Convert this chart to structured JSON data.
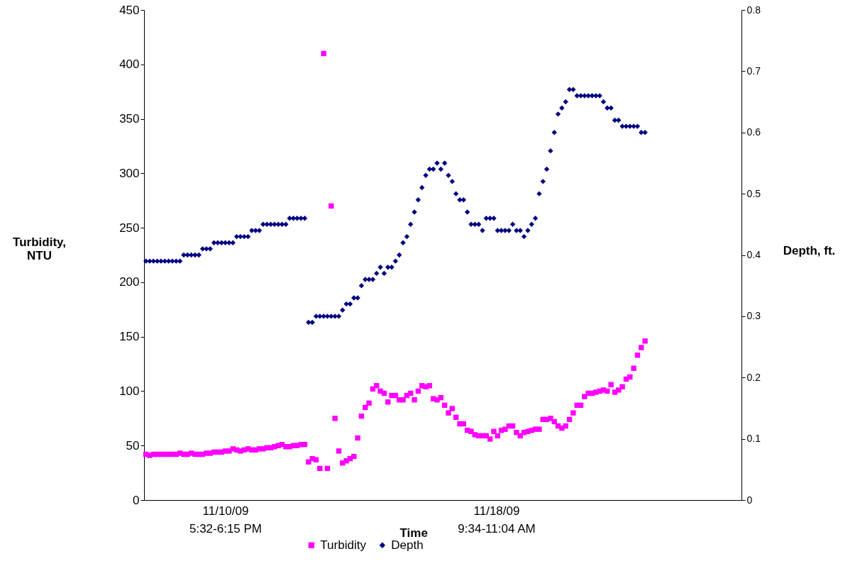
{
  "chart_data": {
    "type": "scatter",
    "ylabel": "Turbidity, NTU",
    "y2label": "Depth, ft.",
    "xlabel": "Time",
    "annotations": [
      "11/10/09 5:32-6:15 PM",
      "11/18/09 9:34-11:04 AM"
    ],
    "categories": [
      null,
      null,
      null,
      null,
      null,
      null,
      null,
      null,
      null,
      null,
      null,
      null,
      null,
      null,
      null,
      null,
      null,
      null,
      null,
      null,
      null,
      null,
      null,
      null,
      null,
      null,
      null,
      null,
      null,
      null,
      null,
      null,
      null,
      null,
      null,
      null,
      null,
      null,
      null,
      null,
      null,
      null,
      null,
      null,
      null,
      null,
      null,
      null,
      null,
      null,
      null,
      null,
      null,
      null,
      null,
      null,
      null,
      null,
      null,
      null,
      null,
      null,
      null,
      null,
      null,
      null,
      null,
      null,
      null,
      null,
      null,
      null,
      null,
      null,
      null,
      null,
      null,
      null,
      null,
      null,
      null,
      null,
      null,
      null,
      null,
      null,
      null,
      null,
      null,
      null,
      null,
      null,
      null,
      null,
      null,
      null,
      null,
      null,
      null,
      null,
      null,
      null,
      null,
      null,
      null,
      null,
      null,
      null,
      null,
      null,
      null,
      null,
      null,
      null,
      null,
      null,
      null,
      null,
      null,
      null,
      null,
      null,
      null,
      null,
      null,
      null,
      null,
      null,
      null,
      null,
      null,
      null,
      null,
      null,
      null,
      null,
      null,
      null,
      null,
      null,
      null,
      null,
      null,
      null,
      null,
      null,
      null,
      null,
      null,
      null,
      null,
      null,
      null,
      null,
      null,
      null,
      null,
      null
    ],
    "series": [
      {
        "name": "Turbidity",
        "color": "#ff00ff",
        "marker": "square",
        "values": [
          42,
          41,
          42,
          42,
          42,
          42,
          42,
          42,
          42,
          43,
          42,
          42,
          43,
          42,
          42,
          42,
          43,
          43,
          44,
          44,
          44,
          45,
          45,
          47,
          46,
          45,
          46,
          47,
          46,
          46,
          47,
          47,
          48,
          48,
          49,
          50,
          51,
          49,
          49,
          50,
          50,
          51,
          51,
          35,
          38,
          37,
          29,
          410,
          29,
          270,
          75,
          45,
          34,
          36,
          38,
          40,
          57,
          77,
          85,
          89,
          102,
          105,
          100,
          98,
          90,
          96,
          96,
          92,
          92,
          96,
          98,
          92,
          100,
          105,
          104,
          105,
          93,
          92,
          94,
          87,
          80,
          84,
          76,
          70,
          70,
          64,
          63,
          60,
          59,
          59,
          59,
          56,
          63,
          59,
          64,
          65,
          68,
          68,
          62,
          59,
          62,
          63,
          64,
          65,
          65,
          74,
          74,
          75,
          72,
          68,
          66,
          68,
          74,
          80,
          87,
          87,
          95,
          98,
          98,
          99,
          100,
          101,
          100,
          106,
          99,
          101,
          104,
          111,
          113,
          121,
          133,
          140,
          146,
          null,
          null,
          null,
          null,
          null,
          null,
          null,
          null,
          null,
          null,
          null,
          null,
          null,
          null,
          null,
          null,
          null,
          null,
          null,
          null,
          null,
          null,
          null,
          null,
          null
        ]
      },
      {
        "name": "Depth",
        "color": "#000080",
        "marker": "diamond",
        "axis": "y2",
        "values": [
          0.39,
          0.39,
          0.39,
          0.39,
          0.39,
          0.39,
          0.39,
          0.39,
          0.39,
          0.39,
          0.4,
          0.4,
          0.4,
          0.4,
          0.4,
          0.41,
          0.41,
          0.41,
          0.42,
          0.42,
          0.42,
          0.42,
          0.42,
          0.42,
          0.43,
          0.43,
          0.43,
          0.43,
          0.44,
          0.44,
          0.44,
          0.45,
          0.45,
          0.45,
          0.45,
          0.45,
          0.45,
          0.45,
          0.46,
          0.46,
          0.46,
          0.46,
          0.46,
          0.29,
          0.29,
          0.3,
          0.3,
          0.3,
          0.3,
          0.3,
          0.3,
          0.3,
          0.31,
          0.32,
          0.32,
          0.33,
          0.33,
          0.35,
          0.36,
          0.36,
          0.36,
          0.37,
          0.38,
          0.37,
          0.38,
          0.38,
          0.39,
          0.4,
          0.42,
          0.43,
          0.45,
          0.47,
          0.49,
          0.51,
          0.53,
          0.54,
          0.54,
          0.55,
          0.54,
          0.55,
          0.53,
          0.52,
          0.5,
          0.49,
          0.49,
          0.47,
          0.45,
          0.45,
          0.45,
          0.44,
          0.46,
          0.46,
          0.46,
          0.44,
          0.44,
          0.44,
          0.44,
          0.45,
          0.44,
          0.44,
          0.43,
          0.44,
          0.45,
          0.46,
          0.5,
          0.52,
          0.54,
          0.57,
          0.6,
          0.63,
          0.64,
          0.65,
          0.67,
          0.67,
          0.66,
          0.66,
          0.66,
          0.66,
          0.66,
          0.66,
          0.66,
          0.65,
          0.64,
          0.64,
          0.62,
          0.62,
          0.61,
          0.61,
          0.61,
          0.61,
          0.61,
          0.6,
          0.6,
          null,
          null,
          null,
          null,
          null,
          null,
          null,
          null,
          null,
          null,
          null,
          null,
          null,
          null,
          null,
          null,
          null,
          null,
          null,
          null,
          null,
          null,
          null,
          null,
          null
        ]
      }
    ],
    "ylim": [
      0,
      450
    ],
    "yticks": [
      0,
      50,
      100,
      150,
      200,
      250,
      300,
      350,
      400,
      450
    ],
    "y2lim": [
      0,
      0.8
    ],
    "y2ticks": [
      0,
      0.1,
      0.2,
      0.3,
      0.4,
      0.5,
      0.6,
      0.7,
      0.8
    ],
    "tick_labels": "y",
    "grid": false,
    "legend": "bottom"
  }
}
